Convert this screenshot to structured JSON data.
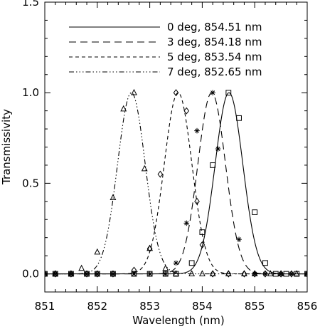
{
  "chart_data": {
    "type": "line",
    "title": "",
    "xlabel": "Wavelength (nm)",
    "ylabel": "Transmissivity",
    "xlim": [
      851,
      856
    ],
    "ylim": [
      -0.1,
      1.5
    ],
    "xticks": [
      851,
      852,
      853,
      854,
      855,
      856
    ],
    "xtick_labels": [
      "851",
      "852",
      "853",
      "854",
      "855",
      "856"
    ],
    "yticks": [
      0.0,
      0.5,
      1.0,
      1.5
    ],
    "ytick_labels": [
      "0.0",
      "0.5",
      "1.0",
      "1.5"
    ],
    "grid": false,
    "legend_position": "top-right",
    "series": [
      {
        "name": "0 deg, 854.51 nm",
        "line_style": "solid",
        "marker": "square",
        "center": 854.51,
        "fwhm": 0.62,
        "points": [
          [
            851.0,
            0.0
          ],
          [
            851.2,
            0.0
          ],
          [
            851.5,
            0.0
          ],
          [
            851.8,
            0.0
          ],
          [
            852.0,
            0.0
          ],
          [
            852.3,
            0.0
          ],
          [
            852.7,
            0.0
          ],
          [
            853.0,
            0.0
          ],
          [
            853.3,
            0.0
          ],
          [
            853.5,
            0.0
          ],
          [
            853.8,
            0.06
          ],
          [
            854.0,
            0.23
          ],
          [
            854.2,
            0.6
          ],
          [
            854.5,
            1.0
          ],
          [
            854.7,
            0.86
          ],
          [
            855.0,
            0.34
          ],
          [
            855.2,
            0.06
          ],
          [
            855.4,
            0.0
          ],
          [
            855.6,
            0.0
          ],
          [
            855.8,
            0.0
          ],
          [
            856.0,
            0.0
          ]
        ]
      },
      {
        "name": "3 deg, 854.18 nm",
        "line_style": "long-dash",
        "marker": "asterisk",
        "center": 854.18,
        "fwhm": 0.62,
        "points": [
          [
            851.0,
            0.0
          ],
          [
            851.2,
            0.0
          ],
          [
            851.5,
            0.0
          ],
          [
            851.8,
            0.0
          ],
          [
            852.0,
            0.0
          ],
          [
            852.3,
            0.0
          ],
          [
            852.7,
            0.0
          ],
          [
            853.0,
            0.0
          ],
          [
            853.3,
            0.0
          ],
          [
            853.5,
            0.06
          ],
          [
            853.7,
            0.28
          ],
          [
            853.9,
            0.79
          ],
          [
            854.2,
            1.0
          ],
          [
            854.3,
            0.69
          ],
          [
            854.7,
            0.19
          ],
          [
            855.0,
            0.0
          ],
          [
            855.2,
            0.0
          ],
          [
            855.5,
            0.0
          ],
          [
            855.7,
            0.0
          ],
          [
            856.0,
            0.0
          ]
        ]
      },
      {
        "name": "5 deg, 853.54 nm",
        "line_style": "short-dash",
        "marker": "diamond",
        "center": 853.54,
        "fwhm": 0.62,
        "points": [
          [
            851.0,
            0.0
          ],
          [
            851.2,
            0.0
          ],
          [
            851.5,
            0.0
          ],
          [
            851.8,
            0.0
          ],
          [
            852.0,
            0.0
          ],
          [
            852.3,
            0.0
          ],
          [
            852.7,
            0.02
          ],
          [
            853.0,
            0.14
          ],
          [
            853.2,
            0.55
          ],
          [
            853.5,
            1.0
          ],
          [
            853.7,
            0.9
          ],
          [
            853.9,
            0.4
          ],
          [
            854.0,
            0.16
          ],
          [
            854.2,
            0.0
          ],
          [
            854.5,
            0.0
          ],
          [
            854.8,
            0.0
          ],
          [
            855.0,
            0.0
          ],
          [
            855.2,
            0.0
          ],
          [
            855.5,
            0.0
          ],
          [
            855.7,
            0.0
          ],
          [
            856.0,
            0.0
          ]
        ]
      },
      {
        "name": "7 deg, 852.65 nm",
        "line_style": "dash-dot-dot-dot",
        "marker": "triangle",
        "center": 852.65,
        "fwhm": 0.62,
        "points": [
          [
            851.0,
            0.0
          ],
          [
            851.2,
            0.0
          ],
          [
            851.5,
            0.0
          ],
          [
            851.7,
            0.03
          ],
          [
            852.0,
            0.12
          ],
          [
            852.3,
            0.42
          ],
          [
            852.5,
            0.91
          ],
          [
            852.7,
            1.0
          ],
          [
            852.9,
            0.58
          ],
          [
            853.0,
            0.14
          ],
          [
            853.3,
            0.03
          ],
          [
            853.5,
            0.0
          ],
          [
            853.8,
            0.0
          ],
          [
            854.0,
            0.0
          ],
          [
            854.2,
            0.0
          ],
          [
            854.5,
            0.0
          ],
          [
            854.8,
            0.0
          ],
          [
            855.0,
            0.0
          ],
          [
            855.3,
            0.0
          ],
          [
            855.5,
            0.0
          ],
          [
            855.8,
            0.0
          ],
          [
            856.0,
            0.0
          ]
        ]
      }
    ]
  }
}
